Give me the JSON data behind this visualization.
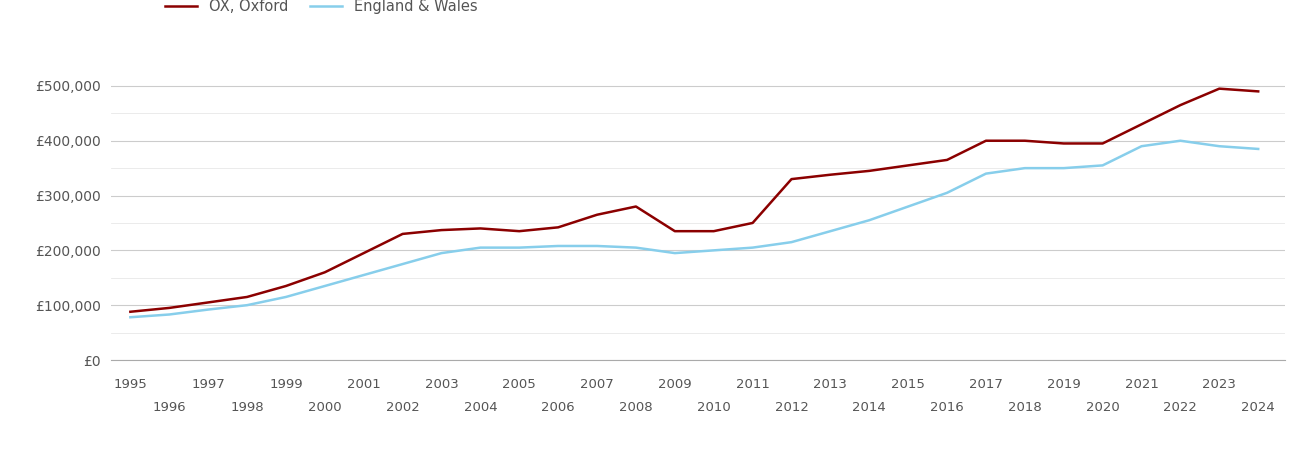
{
  "oxford_years": [
    1995,
    1996,
    1997,
    1998,
    1999,
    2000,
    2001,
    2002,
    2003,
    2004,
    2005,
    2006,
    2007,
    2008,
    2009,
    2010,
    2011,
    2012,
    2013,
    2014,
    2015,
    2016,
    2017,
    2018,
    2019,
    2020,
    2021,
    2022,
    2023,
    2024
  ],
  "oxford_values": [
    88000,
    95000,
    105000,
    115000,
    135000,
    160000,
    195000,
    230000,
    237000,
    240000,
    235000,
    242000,
    265000,
    280000,
    235000,
    235000,
    250000,
    330000,
    338000,
    345000,
    355000,
    365000,
    400000,
    400000,
    395000,
    395000,
    430000,
    465000,
    495000,
    490000
  ],
  "ew_years": [
    1995,
    1996,
    1997,
    1998,
    1999,
    2000,
    2001,
    2002,
    2003,
    2004,
    2005,
    2006,
    2007,
    2008,
    2009,
    2010,
    2011,
    2012,
    2013,
    2014,
    2015,
    2016,
    2017,
    2018,
    2019,
    2020,
    2021,
    2022,
    2023,
    2024
  ],
  "ew_values": [
    78000,
    83000,
    92000,
    100000,
    115000,
    135000,
    155000,
    175000,
    195000,
    205000,
    205000,
    208000,
    208000,
    205000,
    195000,
    200000,
    205000,
    215000,
    235000,
    255000,
    280000,
    305000,
    340000,
    350000,
    350000,
    355000,
    390000,
    400000,
    390000,
    385000
  ],
  "oxford_color": "#8B0000",
  "ew_color": "#87CEEB",
  "oxford_label": "OX, Oxford",
  "ew_label": "England & Wales",
  "ylim": [
    0,
    550000
  ],
  "yticks_major": [
    0,
    100000,
    200000,
    300000,
    400000,
    500000
  ],
  "yticks_minor": [
    50000,
    150000,
    250000,
    350000,
    450000
  ],
  "ytick_labels": [
    "£0",
    "£100,000",
    "£200,000",
    "£300,000",
    "£400,000",
    "£500,000"
  ],
  "xticks_odd": [
    1995,
    1997,
    1999,
    2001,
    2003,
    2005,
    2007,
    2009,
    2011,
    2013,
    2015,
    2017,
    2019,
    2021,
    2023
  ],
  "xticks_even": [
    1996,
    1998,
    2000,
    2002,
    2004,
    2006,
    2008,
    2010,
    2012,
    2014,
    2016,
    2018,
    2020,
    2022,
    2024
  ],
  "background_color": "#ffffff",
  "grid_color_major": "#cccccc",
  "grid_color_minor": "#e8e8e8",
  "line_width": 1.8,
  "xlim": [
    1994.5,
    2024.7
  ]
}
